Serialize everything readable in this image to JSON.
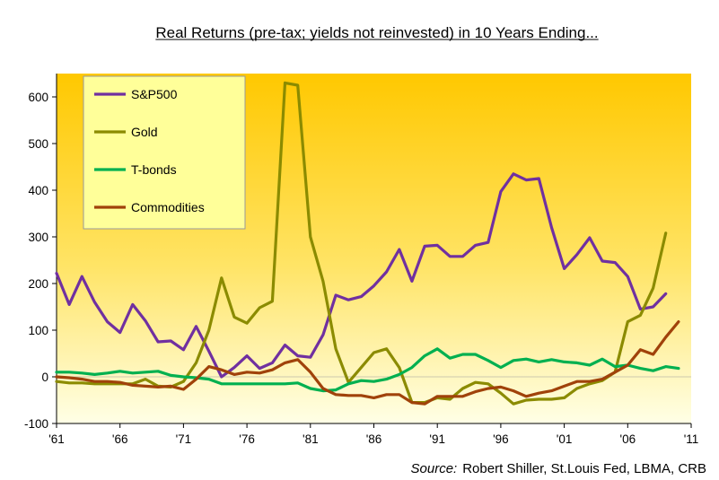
{
  "chart_data": {
    "type": "line",
    "title": "Real Returns (pre-tax; yields not reinvested) in 10 Years Ending...",
    "source_label": "Source:",
    "source_text": "Robert Shiller, St.Louis Fed, LBMA, CRB",
    "xlabel": "",
    "ylabel": "",
    "xlim": [
      1961,
      2011
    ],
    "ylim": [
      -100,
      650
    ],
    "x_ticks": [
      {
        "value": 1961,
        "label": "'61"
      },
      {
        "value": 1966,
        "label": "'66"
      },
      {
        "value": 1971,
        "label": "'71"
      },
      {
        "value": 1976,
        "label": "'76"
      },
      {
        "value": 1981,
        "label": "'81"
      },
      {
        "value": 1986,
        "label": "'86"
      },
      {
        "value": 1991,
        "label": "'91"
      },
      {
        "value": 1996,
        "label": "'96"
      },
      {
        "value": 2001,
        "label": "'01"
      },
      {
        "value": 2006,
        "label": "'06"
      },
      {
        "value": 2011,
        "label": "'11"
      }
    ],
    "y_ticks": [
      -100,
      0,
      100,
      200,
      300,
      400,
      500,
      600
    ],
    "grid": false,
    "legend_position": "top-left",
    "x": [
      1961,
      1962,
      1963,
      1964,
      1965,
      1966,
      1967,
      1968,
      1969,
      1970,
      1971,
      1972,
      1973,
      1974,
      1975,
      1976,
      1977,
      1978,
      1979,
      1980,
      1981,
      1982,
      1983,
      1984,
      1985,
      1986,
      1987,
      1988,
      1989,
      1990,
      1991,
      1992,
      1993,
      1994,
      1995,
      1996,
      1997,
      1998,
      1999,
      2000,
      2001,
      2002,
      2003,
      2004,
      2005,
      2006,
      2007,
      2008,
      2009,
      2010
    ],
    "series": [
      {
        "name": "S&P500",
        "color": "#7030A0",
        "values": [
          222,
          155,
          215,
          160,
          118,
          95,
          155,
          120,
          75,
          77,
          58,
          108,
          55,
          0,
          20,
          45,
          18,
          30,
          68,
          45,
          42,
          90,
          175,
          165,
          172,
          195,
          225,
          273,
          205,
          280,
          282,
          258,
          258,
          282,
          288,
          397,
          435,
          422,
          425,
          320,
          232,
          262,
          298,
          248,
          245,
          215,
          145,
          150,
          178,
          null
        ]
      },
      {
        "name": "Gold",
        "color": "#8B8B00",
        "values": [
          -10,
          -13,
          -13,
          -15,
          -15,
          -15,
          -15,
          -5,
          -20,
          -22,
          -10,
          30,
          100,
          212,
          128,
          115,
          148,
          162,
          630,
          625,
          300,
          205,
          60,
          -12,
          20,
          52,
          60,
          20,
          -55,
          -55,
          -45,
          -48,
          -25,
          -12,
          -15,
          -35,
          -58,
          -50,
          -48,
          -48,
          -45,
          -25,
          -15,
          -8,
          10,
          118,
          132,
          190,
          308,
          null
        ]
      },
      {
        "name": "T-bonds",
        "color": "#00B050",
        "values": [
          10,
          10,
          8,
          5,
          8,
          12,
          8,
          10,
          12,
          3,
          0,
          -2,
          -5,
          -15,
          -15,
          -15,
          -15,
          -15,
          -15,
          -13,
          -25,
          -30,
          -28,
          -15,
          -8,
          -10,
          -5,
          5,
          20,
          45,
          60,
          40,
          48,
          48,
          35,
          20,
          35,
          38,
          32,
          37,
          32,
          30,
          25,
          38,
          22,
          25,
          18,
          13,
          22,
          18
        ]
      },
      {
        "name": "Commodities",
        "color": "#A0420A",
        "values": [
          0,
          -2,
          -5,
          -10,
          -10,
          -12,
          -18,
          -20,
          -22,
          -20,
          -27,
          -5,
          22,
          15,
          5,
          10,
          8,
          15,
          30,
          37,
          10,
          -25,
          -38,
          -40,
          -40,
          -45,
          -38,
          -38,
          -55,
          -58,
          -42,
          -42,
          -42,
          -32,
          -25,
          -22,
          -30,
          -42,
          -35,
          -30,
          -20,
          -10,
          -10,
          -5,
          10,
          25,
          58,
          48,
          85,
          118
        ]
      }
    ]
  }
}
